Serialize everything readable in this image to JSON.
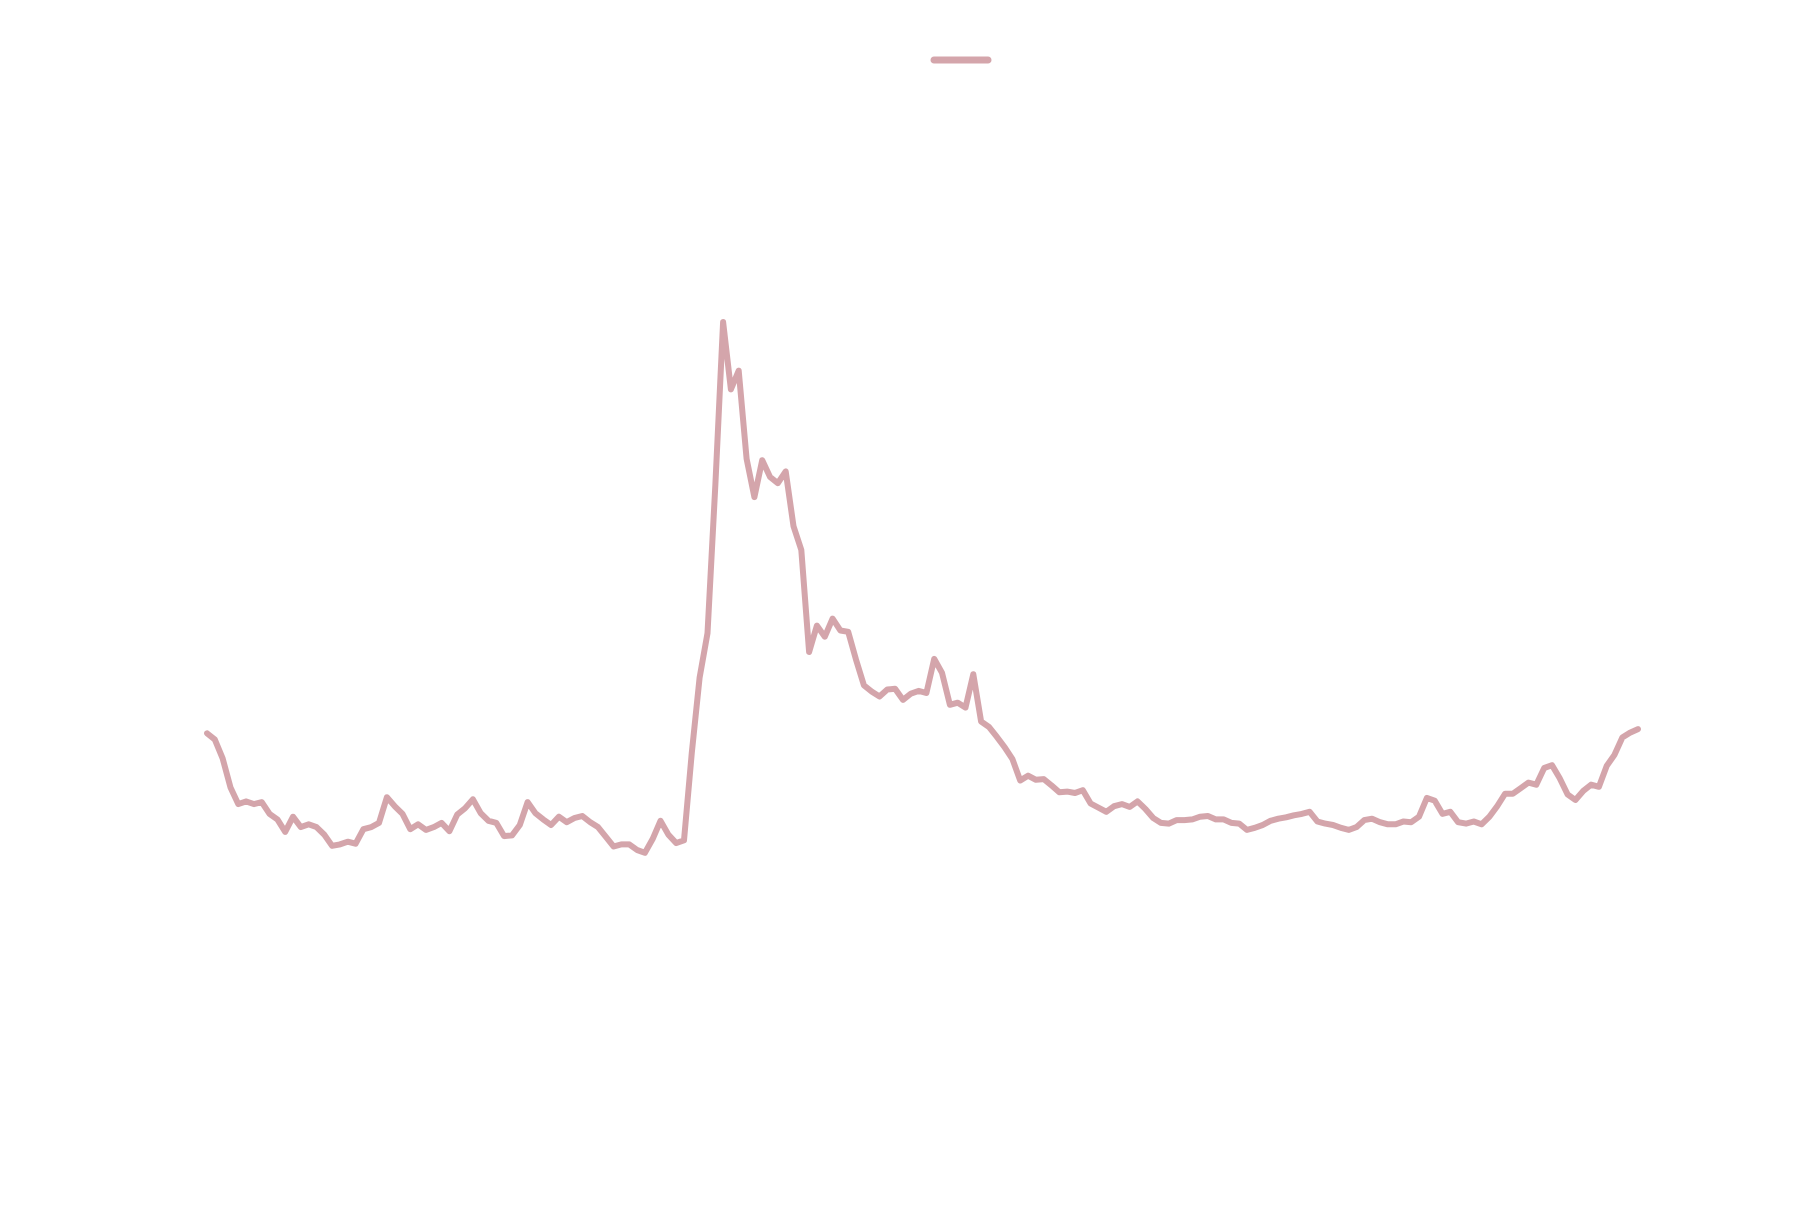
{
  "chart_data": {
    "type": "line",
    "title": "",
    "xlabel": "",
    "ylabel": "",
    "grid": false,
    "legend": {
      "position": "top-center",
      "shown": true
    },
    "series": [
      {
        "name": "",
        "color": "#d4a5ab",
        "values": [
          62.8,
          61.9,
          59.2,
          55.0,
          52.6,
          53.0,
          52.6,
          52.9,
          51.2,
          50.4,
          48.6,
          50.8,
          49.3,
          49.7,
          49.3,
          48.2,
          46.6,
          46.8,
          47.2,
          46.9,
          49.0,
          49.3,
          49.9,
          53.6,
          52.3,
          51.2,
          49.0,
          49.7,
          48.9,
          49.3,
          49.9,
          48.7,
          51.1,
          52.0,
          53.3,
          51.3,
          50.2,
          49.9,
          48.0,
          48.1,
          49.6,
          52.9,
          51.3,
          50.4,
          49.6,
          50.8,
          50.0,
          50.6,
          50.9,
          50.0,
          49.3,
          47.9,
          46.5,
          46.8,
          46.8,
          46.0,
          45.6,
          47.6,
          50.2,
          48.2,
          47.0,
          47.4,
          60.0,
          70.8,
          77.2,
          98.4,
          122.0,
          112.3,
          115.0,
          102.3,
          96.8,
          102.1,
          99.7,
          98.8,
          100.5,
          92.6,
          89.2,
          74.5,
          78.3,
          76.7,
          79.3,
          77.6,
          77.4,
          73.4,
          69.7,
          68.8,
          68.1,
          69.1,
          69.2,
          67.6,
          68.5,
          68.9,
          68.6,
          73.5,
          71.5,
          66.9,
          67.2,
          66.5,
          71.3,
          64.5,
          63.7,
          62.3,
          60.8,
          59.1,
          56.0,
          56.7,
          56.1,
          56.2,
          55.3,
          54.3,
          54.4,
          54.2,
          54.6,
          52.7,
          52.1,
          51.5,
          52.3,
          52.6,
          52.2,
          53.0,
          51.9,
          50.6,
          49.9,
          49.8,
          50.3,
          50.3,
          50.4,
          50.8,
          50.9,
          50.4,
          50.4,
          49.9,
          49.8,
          48.9,
          49.2,
          49.6,
          50.2,
          50.5,
          50.7,
          51.0,
          51.2,
          51.5,
          50.1,
          49.8,
          49.6,
          49.2,
          48.9,
          49.3,
          50.3,
          50.5,
          50.0,
          49.7,
          49.7,
          50.1,
          50.0,
          50.8,
          53.5,
          53.1,
          51.2,
          51.5,
          50.0,
          49.8,
          50.1,
          49.7,
          50.8,
          52.3,
          54.1,
          54.1,
          54.9,
          55.7,
          55.4,
          57.8,
          58.2,
          56.3,
          54.0,
          53.2,
          54.5,
          55.4,
          55.1,
          58.1,
          59.7,
          62.2,
          62.9,
          63.4
        ],
        "ylim": [
          46,
          139.7
        ]
      }
    ]
  }
}
